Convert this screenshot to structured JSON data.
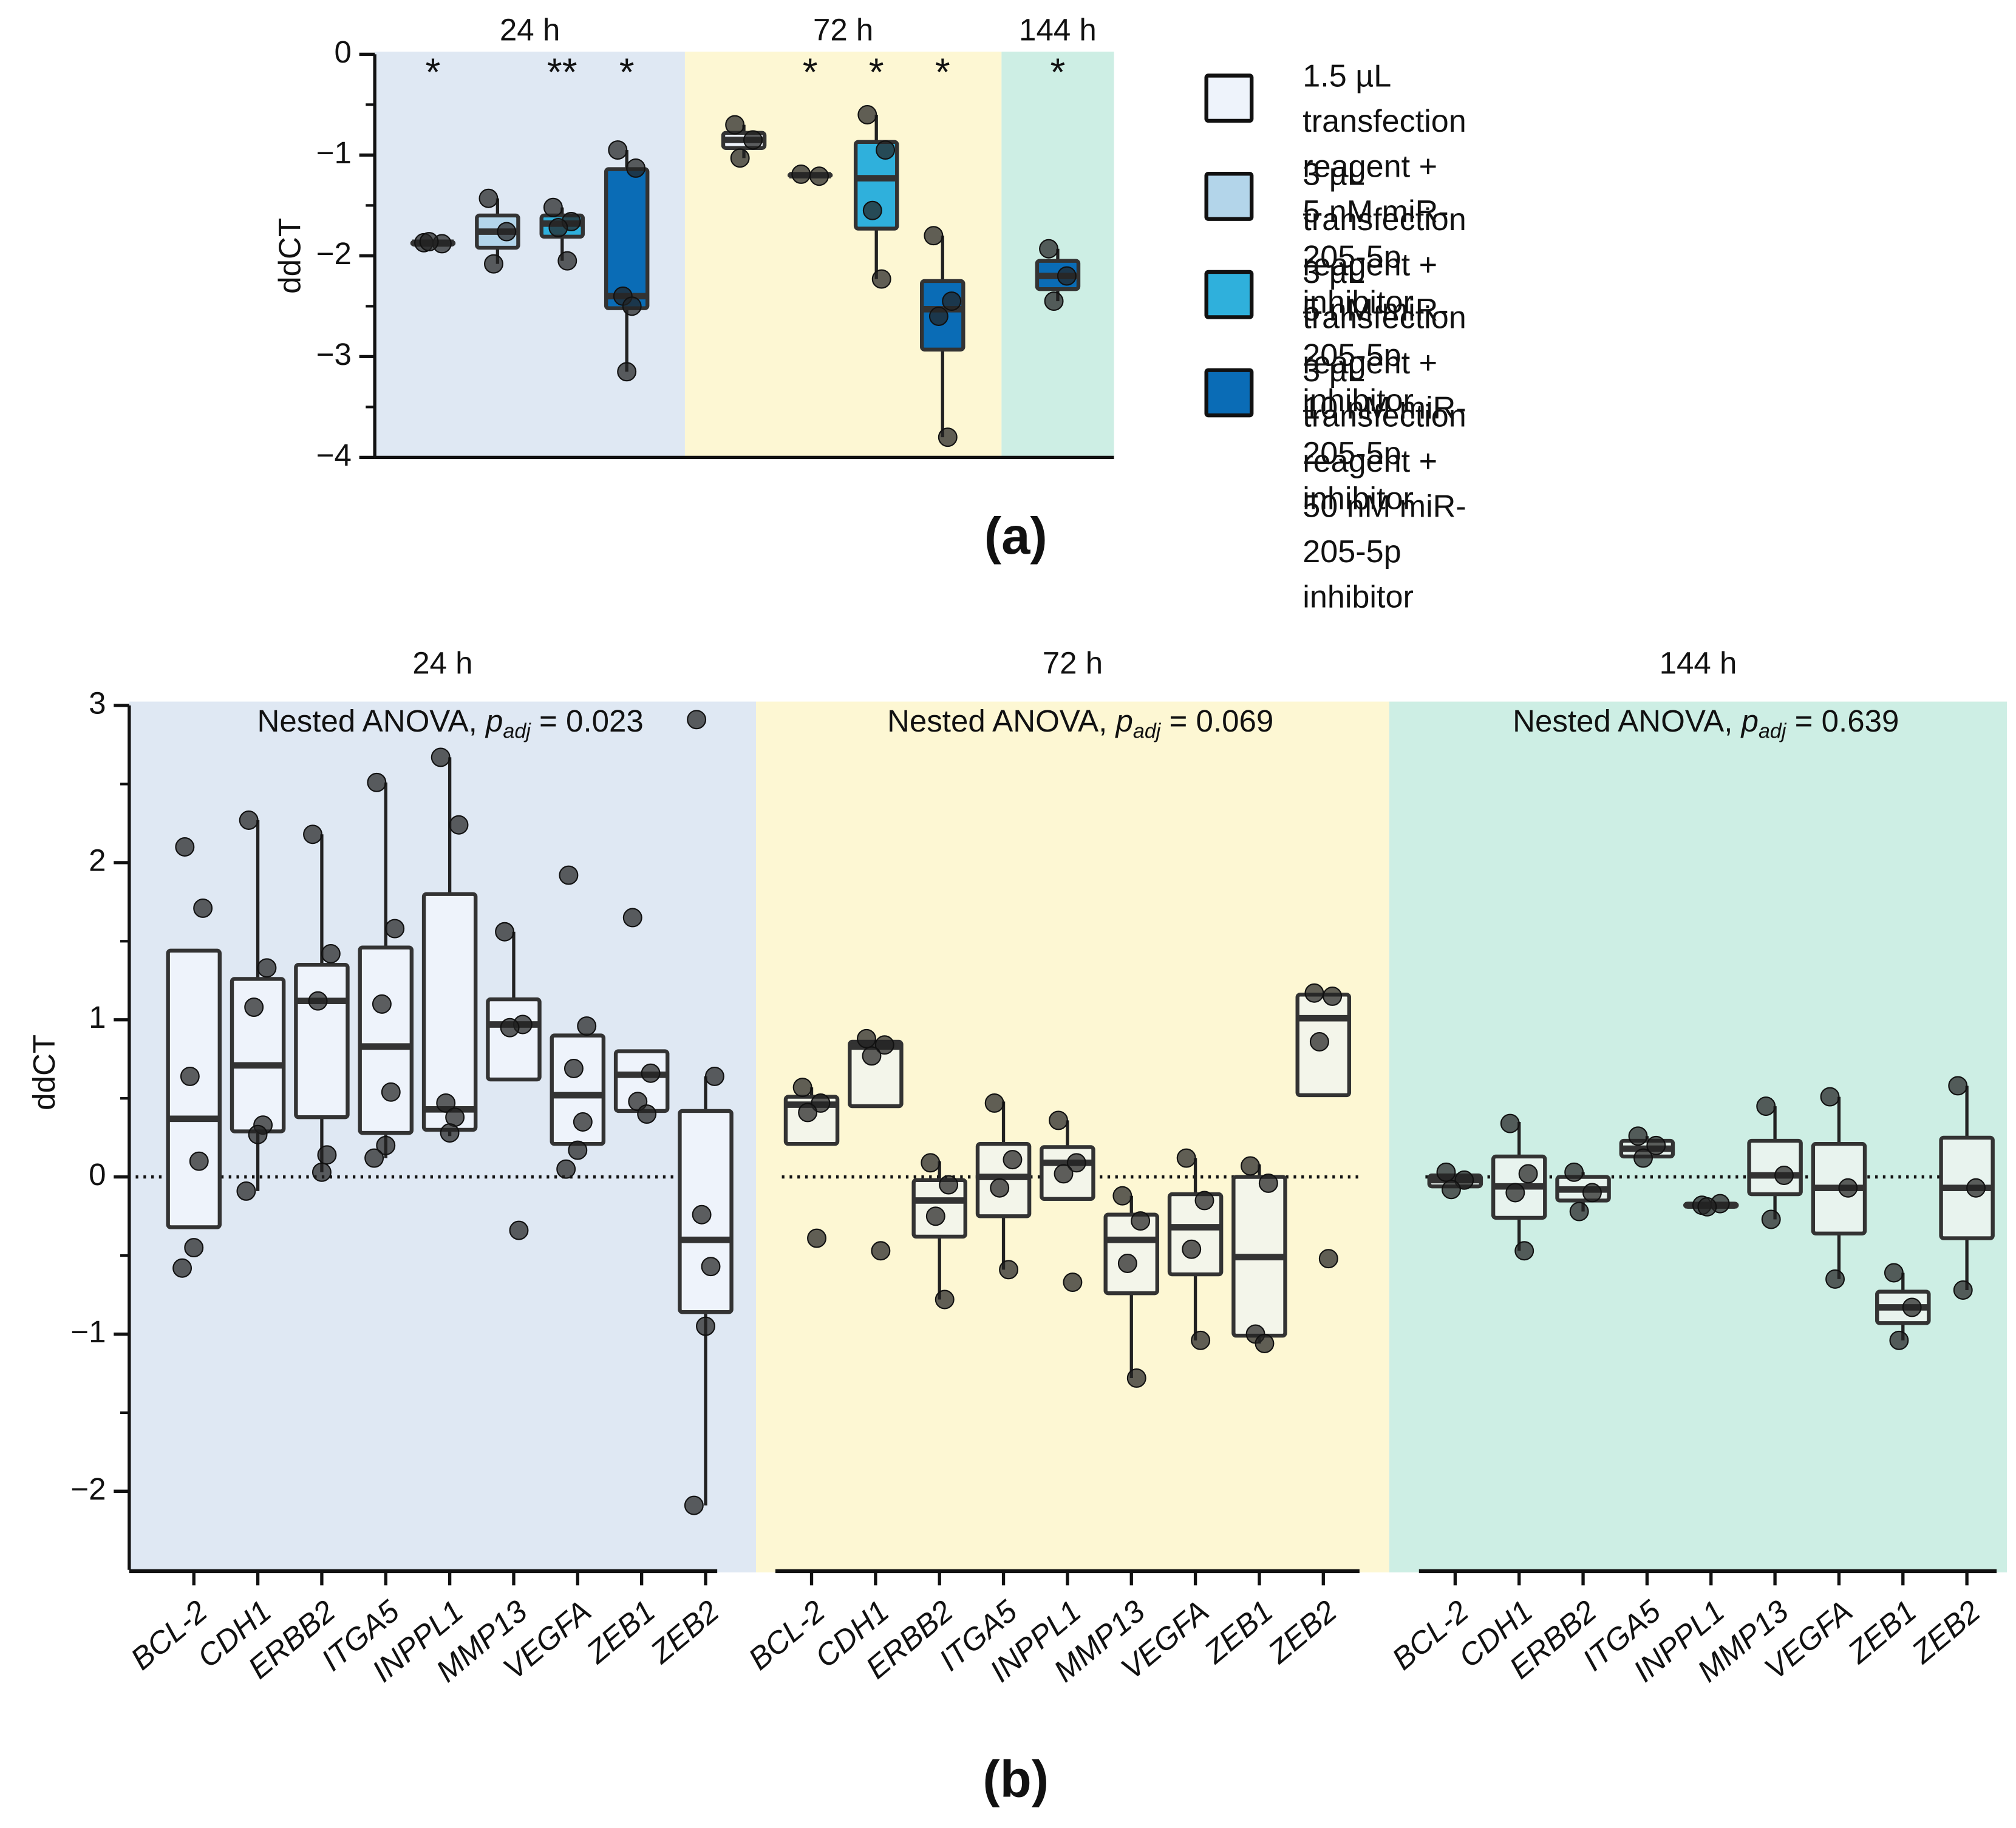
{
  "chart_data": [
    {
      "type": "box",
      "label": "(a)",
      "ylabel": "ddCT",
      "ylim": [
        -4,
        0
      ],
      "yticks": [
        0,
        {
          "value": -1,
          "label": "−1"
        },
        {
          "value": -2,
          "label": "−2"
        },
        {
          "value": -3,
          "label": "−3"
        },
        {
          "value": -4,
          "label": "−4"
        }
      ],
      "minor_yticks": [
        -0.5,
        -1.5,
        -2.5,
        -3.5
      ],
      "groups": [
        "24 h",
        "72 h",
        "144 h"
      ],
      "background_colors": [
        "#dfe8f3",
        "#fdf7d3",
        "#cdeee4"
      ],
      "series": [
        {
          "name": "1.5 µL transfection reagent +\n5 nM miR-205-5p inhibitor",
          "color": "#eef3fb",
          "significance": [
            "*",
            null,
            null
          ],
          "boxes": [
            {
              "q1": -1.89,
              "median": -1.87,
              "q3": -1.86,
              "whislo": null,
              "whishi": null,
              "points": [
                -1.87,
                -1.88,
                -1.86
              ]
            },
            {
              "q1": -0.93,
              "median": -0.85,
              "q3": -0.78,
              "whislo": -1.03,
              "whishi": -0.7,
              "points": [
                -0.7,
                -0.85,
                -1.03
              ]
            },
            null
          ]
        },
        {
          "name": "3 µL transfection reagent +\n5 nM miR-205-5p inhibitor",
          "color": "#b3d5ea",
          "significance": [
            null,
            "*",
            null
          ],
          "boxes": [
            {
              "q1": -1.92,
              "median": -1.76,
              "q3": -1.6,
              "whislo": -2.08,
              "whishi": -1.43,
              "points": [
                -1.43,
                -1.76,
                -2.08
              ]
            },
            {
              "q1": -1.21,
              "median": -1.2,
              "q3": -1.19,
              "whislo": null,
              "whishi": null,
              "points": [
                -1.19,
                -1.21
              ]
            },
            null
          ]
        },
        {
          "name": "3 µL transfection reagent +\n10 nM miR-205-5p inhibitor",
          "color": "#2fb0dc",
          "significance": [
            "**",
            "*",
            null
          ],
          "boxes": [
            {
              "q1": -1.81,
              "median": -1.68,
              "q3": -1.6,
              "whislo": -2.05,
              "whishi": -1.52,
              "points": [
                -1.52,
                -1.66,
                -1.72,
                -2.05
              ]
            },
            {
              "q1": -1.73,
              "median": -1.23,
              "q3": -0.87,
              "whislo": -2.23,
              "whishi": -0.6,
              "points": [
                -0.6,
                -0.95,
                -1.55,
                -2.23
              ]
            },
            null
          ]
        },
        {
          "name": "3 µL transfection reagent +\n50 nM miR-205-5p inhibitor",
          "color": "#0a6cb6",
          "significance": [
            "*",
            "*",
            "*"
          ],
          "boxes": [
            {
              "q1": -2.52,
              "median": -2.4,
              "q3": -1.14,
              "whislo": -3.15,
              "whishi": -0.95,
              "points": [
                -0.95,
                -1.13,
                -2.4,
                -2.5,
                -3.15
              ]
            },
            {
              "q1": -2.93,
              "median": -2.53,
              "q3": -2.25,
              "whislo": -3.8,
              "whishi": -1.8,
              "points": [
                -1.8,
                -2.45,
                -2.6,
                -3.8
              ]
            },
            {
              "q1": -2.33,
              "median": -2.2,
              "q3": -2.05,
              "whislo": -2.45,
              "whishi": -1.93,
              "points": [
                -1.93,
                -2.2,
                -2.45
              ]
            }
          ]
        }
      ]
    },
    {
      "type": "box",
      "label": "(b)",
      "ylabel": "ddCT",
      "ylim": [
        -2.5,
        3
      ],
      "yticks": [
        {
          "value": -2,
          "label": "−2"
        },
        {
          "value": -1,
          "label": "−1"
        },
        0,
        1,
        2,
        3
      ],
      "minor_yticks": [
        -1.5,
        -0.5,
        0.5,
        1.5,
        2.5
      ],
      "reference_line": 0,
      "categories": [
        "BCL-2",
        "CDH1",
        "ERBB2",
        "ITGA5",
        "INPPL1",
        "MMP13",
        "VEGFA",
        "ZEB1",
        "ZEB2"
      ],
      "panels": [
        {
          "title": "24 h",
          "background": "#dfe8f3",
          "box_color": "#eef3fb",
          "annotation": {
            "text": "Nested ANOVA, ",
            "italic": "p",
            "subscript": "adj",
            "rest": " = 0.023"
          },
          "boxes": [
            {
              "q1": -0.32,
              "median": 0.37,
              "q3": 1.44,
              "whislo": null,
              "whishi": null,
              "points": [
                2.1,
                1.71,
                0.64,
                0.1,
                -0.45,
                -0.58
              ]
            },
            {
              "q1": 0.29,
              "median": 0.71,
              "q3": 1.26,
              "whislo": -0.09,
              "whishi": 2.27,
              "points": [
                2.27,
                1.33,
                1.08,
                0.33,
                0.27,
                -0.09
              ]
            },
            {
              "q1": 0.38,
              "median": 1.12,
              "q3": 1.35,
              "whislo": 0.03,
              "whishi": 2.18,
              "points": [
                2.18,
                1.42,
                1.12,
                0.14,
                0.03
              ]
            },
            {
              "q1": 0.28,
              "median": 0.83,
              "q3": 1.46,
              "whislo": 0.12,
              "whishi": 2.51,
              "points": [
                2.51,
                1.58,
                1.1,
                0.54,
                0.2,
                0.12
              ]
            },
            {
              "q1": 0.3,
              "median": 0.43,
              "q3": 1.8,
              "whislo": 0.26,
              "whishi": 2.67,
              "points": [
                2.67,
                2.24,
                0.47,
                0.38,
                0.28
              ]
            },
            {
              "q1": 0.62,
              "median": 0.97,
              "q3": 1.13,
              "whislo": null,
              "whishi": 1.56,
              "points": [
                1.56,
                0.97,
                0.95,
                -0.34
              ]
            },
            {
              "q1": 0.21,
              "median": 0.52,
              "q3": 0.9,
              "whislo": null,
              "whishi": null,
              "points": [
                1.92,
                0.96,
                0.69,
                0.35,
                0.17,
                0.05
              ]
            },
            {
              "q1": 0.42,
              "median": 0.65,
              "q3": 0.8,
              "whislo": null,
              "whishi": null,
              "points": [
                1.65,
                0.66,
                0.48,
                0.4
              ]
            },
            {
              "q1": -0.86,
              "median": -0.4,
              "q3": 0.42,
              "whislo": -2.09,
              "whishi": 0.64,
              "points": [
                2.91,
                0.64,
                -0.24,
                -0.57,
                -0.95,
                -2.09
              ]
            }
          ]
        },
        {
          "title": "72 h",
          "background": "#fdf7d3",
          "box_color": "#f3f5ea",
          "annotation": {
            "text": "Nested ANOVA, ",
            "italic": "p",
            "subscript": "adj",
            "rest": " = 0.069"
          },
          "boxes": [
            {
              "q1": 0.21,
              "median": 0.46,
              "q3": 0.51,
              "whislo": null,
              "whishi": 0.57,
              "points": [
                0.57,
                0.47,
                0.41,
                -0.39
              ]
            },
            {
              "q1": 0.45,
              "median": 0.83,
              "q3": 0.86,
              "whislo": null,
              "whishi": null,
              "points": [
                0.88,
                0.84,
                0.77,
                -0.47
              ]
            },
            {
              "q1": -0.38,
              "median": -0.15,
              "q3": -0.02,
              "whislo": -0.78,
              "whishi": 0.1,
              "points": [
                0.09,
                -0.05,
                -0.25,
                -0.78
              ]
            },
            {
              "q1": -0.25,
              "median": 0,
              "q3": 0.21,
              "whislo": -0.59,
              "whishi": 0.48,
              "points": [
                0.47,
                0.11,
                -0.07,
                -0.59
              ]
            },
            {
              "q1": -0.14,
              "median": 0.09,
              "q3": 0.19,
              "whislo": null,
              "whishi": 0.36,
              "points": [
                0.36,
                0.09,
                0.02,
                -0.67
              ]
            },
            {
              "q1": -0.74,
              "median": -0.4,
              "q3": -0.24,
              "whislo": -1.28,
              "whishi": -0.12,
              "points": [
                -0.12,
                -0.28,
                -0.55,
                -1.28
              ]
            },
            {
              "q1": -0.62,
              "median": -0.32,
              "q3": -0.11,
              "whislo": -1.04,
              "whishi": 0.12,
              "points": [
                0.12,
                -0.15,
                -0.46,
                -1.04
              ]
            },
            {
              "q1": -1.01,
              "median": -0.51,
              "q3": 0,
              "whislo": -1.06,
              "whishi": 0.08,
              "points": [
                0.07,
                -0.04,
                -1.0,
                -1.06
              ]
            },
            {
              "q1": 0.52,
              "median": 1.01,
              "q3": 1.16,
              "whislo": null,
              "whishi": null,
              "points": [
                1.17,
                1.15,
                0.86,
                -0.52
              ]
            }
          ]
        },
        {
          "title": "144 h",
          "background": "#cdeee4",
          "box_color": "#e8f3ee",
          "annotation": {
            "text": "Nested ANOVA, ",
            "italic": "p",
            "subscript": "adj",
            "rest": " = 0.639"
          },
          "boxes": [
            {
              "q1": -0.06,
              "median": -0.02,
              "q3": 0.01,
              "whislo": null,
              "whishi": null,
              "points": [
                0.03,
                -0.02,
                -0.08
              ]
            },
            {
              "q1": -0.26,
              "median": -0.06,
              "q3": 0.13,
              "whislo": -0.47,
              "whishi": 0.35,
              "points": [
                0.34,
                0.02,
                -0.1,
                -0.47
              ]
            },
            {
              "q1": -0.15,
              "median": -0.08,
              "q3": 0,
              "whislo": -0.22,
              "whishi": 0.03,
              "points": [
                0.03,
                -0.1,
                -0.22
              ]
            },
            {
              "q1": 0.13,
              "median": 0.18,
              "q3": 0.23,
              "whislo": null,
              "whishi": 0.26,
              "points": [
                0.26,
                0.2,
                0.12
              ]
            },
            {
              "q1": -0.19,
              "median": -0.18,
              "q3": -0.17,
              "whislo": null,
              "whishi": null,
              "points": [
                -0.18,
                -0.17,
                -0.19
              ]
            },
            {
              "q1": -0.11,
              "median": 0.01,
              "q3": 0.23,
              "whislo": -0.27,
              "whishi": 0.45,
              "points": [
                0.45,
                0.01,
                -0.27
              ]
            },
            {
              "q1": -0.36,
              "median": -0.07,
              "q3": 0.21,
              "whislo": -0.65,
              "whishi": 0.51,
              "points": [
                0.51,
                -0.07,
                -0.65
              ]
            },
            {
              "q1": -0.93,
              "median": -0.83,
              "q3": -0.73,
              "whislo": -1.04,
              "whishi": -0.61,
              "points": [
                -0.61,
                -0.83,
                -1.04
              ]
            },
            {
              "q1": -0.39,
              "median": -0.07,
              "q3": 0.25,
              "whislo": -0.72,
              "whishi": 0.58,
              "points": [
                0.58,
                -0.07,
                -0.72
              ]
            }
          ]
        }
      ]
    }
  ]
}
